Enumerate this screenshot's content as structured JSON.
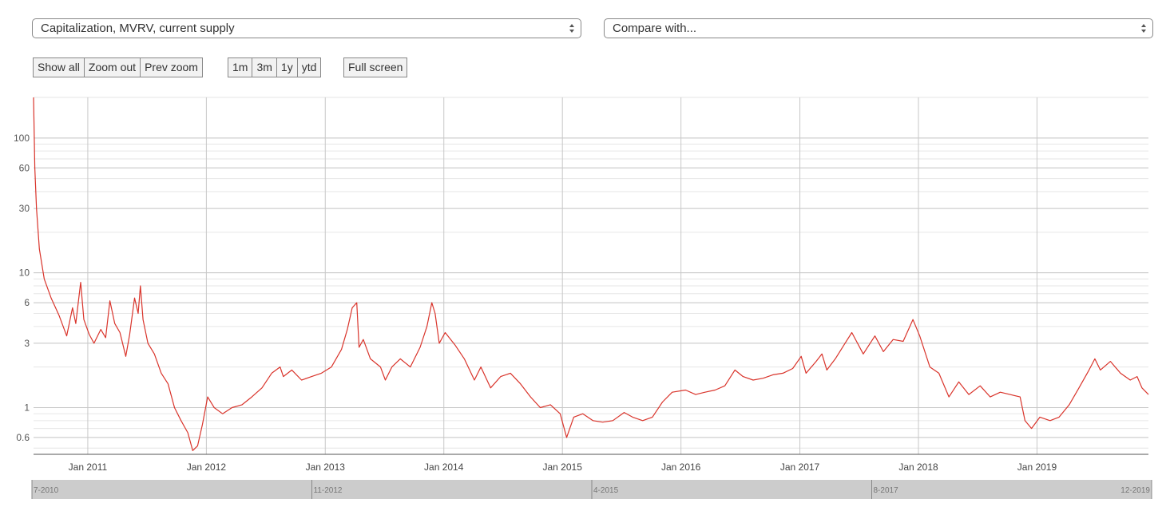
{
  "controls": {
    "metric_select": {
      "value": "Capitalization, MVRV, current supply"
    },
    "compare_select": {
      "value": "Compare with..."
    },
    "zoom_buttons": [
      "Show all",
      "Zoom out",
      "Prev zoom"
    ],
    "range_buttons": [
      "1m",
      "3m",
      "1y",
      "ytd"
    ],
    "fullscreen_label": "Full screen"
  },
  "colors": {
    "series": "#d9342b",
    "grid_major": "#c8c8c8",
    "grid_minor": "#e6e6e6",
    "navigator": "#cccccc"
  },
  "navigator": {
    "labels": [
      "7-2010",
      "11-2012",
      "4-2015",
      "8-2017",
      "12-2019"
    ]
  },
  "chart_data": {
    "type": "line",
    "title": "",
    "xlabel": "",
    "ylabel": "",
    "y_scale": "log",
    "ylim": [
      0.45,
      200
    ],
    "xlim": [
      "2010-07-18",
      "2019-12-10"
    ],
    "y_ticks": [
      0.6,
      1,
      3,
      6,
      10,
      30,
      60,
      100
    ],
    "x_ticks": [
      "Jan 2011",
      "Jan 2012",
      "Jan 2013",
      "Jan 2014",
      "Jan 2015",
      "Jan 2016",
      "Jan 2017",
      "Jan 2018",
      "Jan 2019"
    ],
    "x_tick_dates": [
      "2011-01-01",
      "2012-01-01",
      "2013-01-01",
      "2014-01-01",
      "2015-01-01",
      "2016-01-01",
      "2017-01-01",
      "2018-01-01",
      "2019-01-01"
    ],
    "grid": true,
    "series": [
      {
        "name": "",
        "points": [
          [
            "2010-07-18",
            200
          ],
          [
            "2010-07-22",
            60
          ],
          [
            "2010-07-27",
            30
          ],
          [
            "2010-08-05",
            15
          ],
          [
            "2010-08-20",
            9
          ],
          [
            "2010-09-10",
            6.5
          ],
          [
            "2010-10-05",
            4.8
          ],
          [
            "2010-10-28",
            3.4
          ],
          [
            "2010-11-15",
            5.5
          ],
          [
            "2010-11-25",
            4.2
          ],
          [
            "2010-12-10",
            8.5
          ],
          [
            "2010-12-20",
            4.5
          ],
          [
            "2011-01-05",
            3.5
          ],
          [
            "2011-01-20",
            3.0
          ],
          [
            "2011-02-10",
            3.8
          ],
          [
            "2011-02-25",
            3.3
          ],
          [
            "2011-03-10",
            6.2
          ],
          [
            "2011-03-25",
            4.2
          ],
          [
            "2011-04-10",
            3.6
          ],
          [
            "2011-04-28",
            2.4
          ],
          [
            "2011-05-10",
            3.5
          ],
          [
            "2011-05-25",
            6.5
          ],
          [
            "2011-06-05",
            5.0
          ],
          [
            "2011-06-12",
            8.0
          ],
          [
            "2011-06-20",
            4.5
          ],
          [
            "2011-07-05",
            3.0
          ],
          [
            "2011-07-25",
            2.5
          ],
          [
            "2011-08-15",
            1.8
          ],
          [
            "2011-09-05",
            1.5
          ],
          [
            "2011-09-25",
            1.0
          ],
          [
            "2011-10-15",
            0.8
          ],
          [
            "2011-11-05",
            0.65
          ],
          [
            "2011-11-20",
            0.48
          ],
          [
            "2011-12-05",
            0.52
          ],
          [
            "2011-12-20",
            0.75
          ],
          [
            "2012-01-05",
            1.2
          ],
          [
            "2012-01-25",
            1.0
          ],
          [
            "2012-02-20",
            0.9
          ],
          [
            "2012-03-20",
            1.0
          ],
          [
            "2012-04-20",
            1.05
          ],
          [
            "2012-05-20",
            1.2
          ],
          [
            "2012-06-20",
            1.4
          ],
          [
            "2012-07-20",
            1.8
          ],
          [
            "2012-08-15",
            2.0
          ],
          [
            "2012-08-25",
            1.7
          ],
          [
            "2012-09-20",
            1.9
          ],
          [
            "2012-10-20",
            1.6
          ],
          [
            "2012-11-20",
            1.7
          ],
          [
            "2012-12-20",
            1.8
          ],
          [
            "2013-01-20",
            2.0
          ],
          [
            "2013-02-20",
            2.7
          ],
          [
            "2013-03-10",
            3.8
          ],
          [
            "2013-03-25",
            5.5
          ],
          [
            "2013-04-08",
            6.0
          ],
          [
            "2013-04-15",
            2.8
          ],
          [
            "2013-04-28",
            3.2
          ],
          [
            "2013-05-20",
            2.3
          ],
          [
            "2013-06-20",
            2.0
          ],
          [
            "2013-07-05",
            1.6
          ],
          [
            "2013-07-25",
            2.0
          ],
          [
            "2013-08-20",
            2.3
          ],
          [
            "2013-09-20",
            2.0
          ],
          [
            "2013-10-20",
            2.8
          ],
          [
            "2013-11-10",
            4.0
          ],
          [
            "2013-11-25",
            6.0
          ],
          [
            "2013-12-05",
            5.0
          ],
          [
            "2013-12-18",
            3.0
          ],
          [
            "2014-01-05",
            3.6
          ],
          [
            "2014-02-05",
            2.9
          ],
          [
            "2014-03-05",
            2.3
          ],
          [
            "2014-04-05",
            1.6
          ],
          [
            "2014-04-25",
            2.0
          ],
          [
            "2014-05-25",
            1.4
          ],
          [
            "2014-06-25",
            1.7
          ],
          [
            "2014-07-25",
            1.8
          ],
          [
            "2014-08-25",
            1.5
          ],
          [
            "2014-09-25",
            1.2
          ],
          [
            "2014-10-25",
            1.0
          ],
          [
            "2014-11-25",
            1.05
          ],
          [
            "2014-12-25",
            0.9
          ],
          [
            "2015-01-14",
            0.6
          ],
          [
            "2015-02-05",
            0.85
          ],
          [
            "2015-03-05",
            0.9
          ],
          [
            "2015-04-05",
            0.8
          ],
          [
            "2015-05-05",
            0.78
          ],
          [
            "2015-06-05",
            0.8
          ],
          [
            "2015-07-10",
            0.92
          ],
          [
            "2015-08-05",
            0.85
          ],
          [
            "2015-09-05",
            0.8
          ],
          [
            "2015-10-05",
            0.85
          ],
          [
            "2015-11-05",
            1.1
          ],
          [
            "2015-12-05",
            1.3
          ],
          [
            "2016-01-15",
            1.35
          ],
          [
            "2016-02-15",
            1.25
          ],
          [
            "2016-03-15",
            1.3
          ],
          [
            "2016-04-15",
            1.35
          ],
          [
            "2016-05-15",
            1.45
          ],
          [
            "2016-06-15",
            1.9
          ],
          [
            "2016-07-10",
            1.7
          ],
          [
            "2016-08-10",
            1.6
          ],
          [
            "2016-09-10",
            1.65
          ],
          [
            "2016-10-10",
            1.75
          ],
          [
            "2016-11-10",
            1.8
          ],
          [
            "2016-12-10",
            1.95
          ],
          [
            "2017-01-05",
            2.4
          ],
          [
            "2017-01-20",
            1.8
          ],
          [
            "2017-02-20",
            2.2
          ],
          [
            "2017-03-10",
            2.5
          ],
          [
            "2017-03-25",
            1.9
          ],
          [
            "2017-04-20",
            2.3
          ],
          [
            "2017-05-20",
            3.0
          ],
          [
            "2017-06-10",
            3.6
          ],
          [
            "2017-07-15",
            2.5
          ],
          [
            "2017-08-20",
            3.4
          ],
          [
            "2017-09-15",
            2.6
          ],
          [
            "2017-10-15",
            3.2
          ],
          [
            "2017-11-15",
            3.1
          ],
          [
            "2017-12-15",
            4.5
          ],
          [
            "2018-01-05",
            3.4
          ],
          [
            "2018-02-05",
            2.0
          ],
          [
            "2018-03-05",
            1.8
          ],
          [
            "2018-04-05",
            1.2
          ],
          [
            "2018-05-05",
            1.55
          ],
          [
            "2018-06-05",
            1.25
          ],
          [
            "2018-07-10",
            1.45
          ],
          [
            "2018-08-10",
            1.2
          ],
          [
            "2018-09-10",
            1.3
          ],
          [
            "2018-10-10",
            1.25
          ],
          [
            "2018-11-10",
            1.2
          ],
          [
            "2018-11-25",
            0.8
          ],
          [
            "2018-12-15",
            0.7
          ],
          [
            "2019-01-10",
            0.85
          ],
          [
            "2019-02-10",
            0.8
          ],
          [
            "2019-03-10",
            0.85
          ],
          [
            "2019-04-10",
            1.05
          ],
          [
            "2019-05-10",
            1.4
          ],
          [
            "2019-06-10",
            1.9
          ],
          [
            "2019-06-28",
            2.3
          ],
          [
            "2019-07-15",
            1.9
          ],
          [
            "2019-08-15",
            2.2
          ],
          [
            "2019-09-15",
            1.8
          ],
          [
            "2019-10-15",
            1.6
          ],
          [
            "2019-11-05",
            1.7
          ],
          [
            "2019-11-20",
            1.4
          ],
          [
            "2019-12-10",
            1.25
          ]
        ]
      }
    ]
  }
}
